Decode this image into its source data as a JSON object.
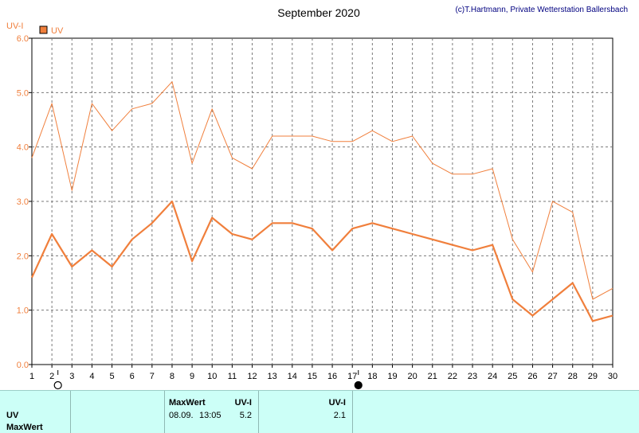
{
  "chart_data": {
    "type": "line",
    "title": "September 2020",
    "credit": "(c)T.Hartmann, Private Wetterstation Ballersbach",
    "ylabel": "UV-I",
    "legend": "UV",
    "ylim": [
      0,
      6
    ],
    "yticks": [
      "0.0",
      "1.0",
      "2.0",
      "3.0",
      "4.0",
      "5.0",
      "6.0"
    ],
    "x": [
      1,
      2,
      3,
      4,
      5,
      6,
      7,
      8,
      9,
      10,
      11,
      12,
      13,
      14,
      15,
      16,
      17,
      18,
      19,
      20,
      21,
      22,
      23,
      24,
      25,
      26,
      27,
      28,
      29,
      30
    ],
    "series": [
      {
        "role": "max",
        "color": "#f07f3c",
        "values": [
          3.8,
          4.8,
          3.2,
          4.8,
          4.3,
          4.7,
          4.8,
          5.2,
          3.7,
          4.7,
          3.8,
          3.6,
          4.2,
          4.2,
          4.2,
          4.1,
          4.1,
          4.3,
          4.1,
          4.2,
          3.7,
          3.5,
          3.5,
          3.6,
          2.3,
          1.7,
          3.0,
          2.8,
          1.2,
          1.4
        ]
      },
      {
        "role": "mean",
        "color": "#f07f3c",
        "values": [
          1.6,
          2.4,
          1.8,
          2.1,
          1.8,
          2.3,
          2.6,
          3.0,
          1.9,
          2.7,
          2.4,
          2.3,
          2.6,
          2.6,
          2.5,
          2.1,
          2.5,
          2.6,
          2.5,
          2.4,
          2.3,
          2.2,
          2.1,
          2.2,
          1.2,
          0.9,
          1.2,
          1.5,
          0.8,
          0.9
        ]
      }
    ],
    "moon_phases": [
      {
        "day": 2,
        "phase": "full moon"
      },
      {
        "day": 17,
        "phase": "new moon"
      }
    ],
    "grid": true
  },
  "footer": {
    "row1_label": "UV",
    "row2_label": "MaxWert",
    "col2_header": "MaxWert",
    "col2_unit": "UV-I",
    "col2_date": "08.09.",
    "col2_time": "13:05",
    "col2_value": "5.2",
    "col3_unit": "UV-I",
    "col3_value": "2.1"
  }
}
